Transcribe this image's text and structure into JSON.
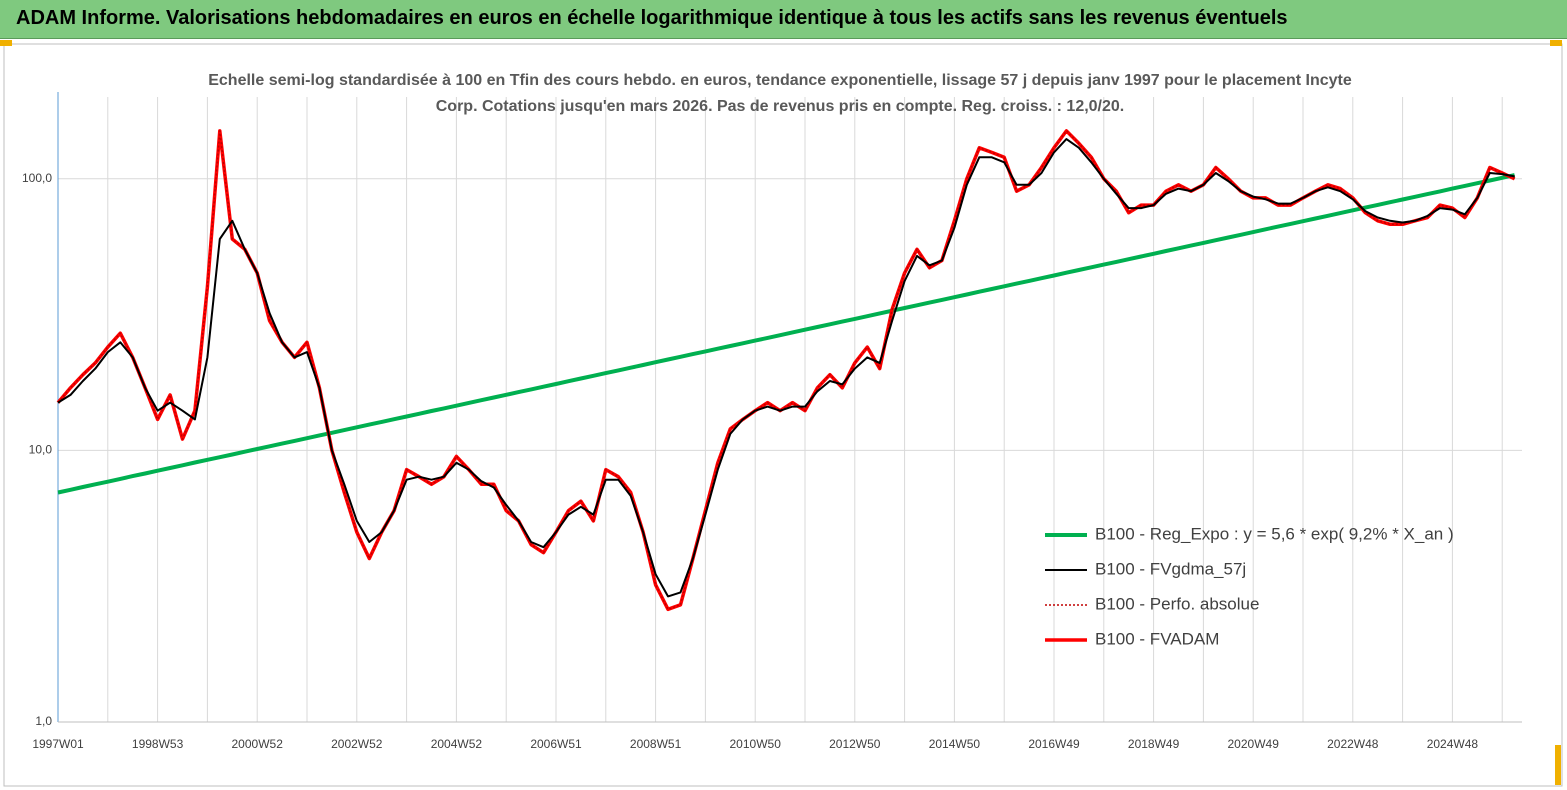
{
  "chart_data": {
    "type": "line",
    "title": "ADAM Informe. Valorisations hebdomadaires en euros en échelle logarithmique identique à tous les actifs sans les revenus éventuels",
    "subtitle": "Echelle semi-log standardisée à 100 en Tfin des cours hebdo. en euros, tendance exponentielle, lissage 57 j depuis janv 1997 pour le placement Incyte Corp. Cotations jusqu'en mars 2026. Pas de revenus pris en compte. Reg. croiss. : 12,0/20.",
    "log_scale": true,
    "grid": true,
    "legend": "lower right",
    "ylim": [
      1,
      200
    ],
    "yticks": [
      {
        "value": 1,
        "label": "1,0"
      },
      {
        "value": 10,
        "label": "10,0"
      },
      {
        "value": 100,
        "label": "100,0"
      }
    ],
    "categories": [
      "1997W01",
      null,
      null,
      null,
      null,
      null,
      null,
      null,
      "1998W53",
      null,
      null,
      null,
      null,
      null,
      null,
      null,
      "2000W52",
      null,
      null,
      null,
      null,
      null,
      null,
      null,
      "2002W52",
      null,
      null,
      null,
      null,
      null,
      null,
      null,
      "2004W52",
      null,
      null,
      null,
      null,
      null,
      null,
      null,
      "2006W51",
      null,
      null,
      null,
      null,
      null,
      null,
      null,
      "2008W51",
      null,
      null,
      null,
      null,
      null,
      null,
      null,
      "2010W50",
      null,
      null,
      null,
      null,
      null,
      null,
      null,
      "2012W50",
      null,
      null,
      null,
      null,
      null,
      null,
      null,
      "2014W50",
      null,
      null,
      null,
      null,
      null,
      null,
      null,
      "2016W49",
      null,
      null,
      null,
      null,
      null,
      null,
      null,
      "2018W49",
      null,
      null,
      null,
      null,
      null,
      null,
      null,
      "2020W49",
      null,
      null,
      null,
      null,
      null,
      null,
      null,
      "2022W48",
      null,
      null,
      null,
      null,
      null,
      null,
      null,
      "2024W48",
      null,
      null,
      null,
      null,
      null
    ],
    "series": [
      {
        "name": "B100 - Reg_Expo : y = 5,6 *  exp( 9,2% *  X_an )",
        "color": "#00b050",
        "width": 4,
        "dash": false,
        "values": [
          7.0,
          7.16,
          7.33,
          7.5,
          7.67,
          7.85,
          8.04,
          8.22,
          8.42,
          8.61,
          8.81,
          9.02,
          9.23,
          9.44,
          9.66,
          9.89,
          10.12,
          10.35,
          10.59,
          10.84,
          11.09,
          11.35,
          11.61,
          11.88,
          12.16,
          12.44,
          12.73,
          13.03,
          13.33,
          13.64,
          13.96,
          14.28,
          14.61,
          14.95,
          15.3,
          15.66,
          16.02,
          16.39,
          16.77,
          17.16,
          17.56,
          17.97,
          18.39,
          18.82,
          19.25,
          19.7,
          20.16,
          20.63,
          21.11,
          21.6,
          22.1,
          22.61,
          23.14,
          23.68,
          24.23,
          24.79,
          25.37,
          25.96,
          26.56,
          27.18,
          27.81,
          28.46,
          29.12,
          29.8,
          30.49,
          31.2,
          31.93,
          32.67,
          33.43,
          34.21,
          35.0,
          35.82,
          36.65,
          37.5,
          38.38,
          39.27,
          40.18,
          41.12,
          42.07,
          43.05,
          44.05,
          45.08,
          46.13,
          47.2,
          48.3,
          49.42,
          50.57,
          51.75,
          52.95,
          54.19,
          55.45,
          56.74,
          58.06,
          59.41,
          60.79,
          62.21,
          63.65,
          65.14,
          66.65,
          68.2,
          69.79,
          71.41,
          73.07,
          74.77,
          76.51,
          78.29,
          80.11,
          81.98,
          83.88,
          85.84,
          87.83,
          89.88,
          91.97,
          94.11,
          96.3,
          98.54,
          100.83,
          103.17
        ]
      },
      {
        "name": "B100 - FVgdma_57j",
        "color": "#000000",
        "width": 2,
        "dash": false,
        "values": [
          15,
          16,
          18,
          20,
          23,
          25,
          22,
          17,
          14,
          15,
          14,
          13,
          22,
          60,
          70,
          55,
          45,
          32,
          25,
          22,
          23,
          17,
          10,
          7.5,
          5.5,
          4.6,
          5.0,
          6.0,
          7.8,
          8.0,
          7.8,
          8.0,
          9.0,
          8.5,
          7.7,
          7.3,
          6.3,
          5.5,
          4.6,
          4.4,
          5.0,
          5.8,
          6.2,
          5.8,
          7.8,
          7.8,
          6.8,
          5.0,
          3.5,
          2.9,
          3.0,
          4.0,
          5.8,
          8.5,
          11.5,
          13,
          14,
          14.5,
          14,
          14.5,
          14.5,
          16.5,
          18,
          17.5,
          20,
          22,
          21,
          30,
          42,
          52,
          48,
          50,
          66,
          95,
          120,
          120,
          115,
          95,
          95,
          105,
          125,
          140,
          130,
          115,
          100,
          88,
          78,
          78,
          80,
          88,
          92,
          90,
          95,
          105,
          98,
          90,
          86,
          84,
          81,
          81,
          85,
          90,
          93,
          90,
          84,
          76,
          72,
          70,
          69,
          70,
          73,
          78,
          77,
          74,
          85,
          105,
          104,
          102
        ]
      },
      {
        "name": "B100 - Perfo. absolue",
        "color": "#c00000",
        "width": 1.5,
        "dash": true,
        "values": [
          15,
          17,
          19,
          21,
          24,
          27,
          22,
          17,
          13,
          16,
          11,
          14,
          40,
          150,
          60,
          55,
          45,
          30,
          25,
          22,
          25,
          17,
          10,
          7,
          5.0,
          4.0,
          5.0,
          6.0,
          8.5,
          8.0,
          7.5,
          8.0,
          9.5,
          8.5,
          7.5,
          7.5,
          6.0,
          5.5,
          4.5,
          4.2,
          5.0,
          6.0,
          6.5,
          5.5,
          8.5,
          8.0,
          7.0,
          5.0,
          3.2,
          2.6,
          2.7,
          4.0,
          6.0,
          9.0,
          12,
          13,
          14,
          15,
          14,
          15,
          14,
          17,
          19,
          17,
          21,
          24,
          20,
          33,
          45,
          55,
          47,
          50,
          70,
          100,
          130,
          125,
          120,
          90,
          95,
          110,
          130,
          150,
          135,
          120,
          100,
          90,
          75,
          80,
          80,
          90,
          95,
          90,
          95,
          110,
          100,
          90,
          85,
          85,
          80,
          80,
          85,
          90,
          95,
          92,
          85,
          75,
          70,
          68,
          68,
          70,
          72,
          80,
          78,
          72,
          85,
          110,
          105,
          100
        ]
      },
      {
        "name": "B100 - FVADAM",
        "color": "#ff0000",
        "width": 3.5,
        "dash": false,
        "values": [
          15,
          17,
          19,
          21,
          24,
          27,
          22,
          17,
          13,
          16,
          11,
          14,
          40,
          150,
          60,
          55,
          45,
          30,
          25,
          22,
          25,
          17,
          10,
          7,
          5.0,
          4.0,
          5.0,
          6.0,
          8.5,
          8.0,
          7.5,
          8.0,
          9.5,
          8.5,
          7.5,
          7.5,
          6.0,
          5.5,
          4.5,
          4.2,
          5.0,
          6.0,
          6.5,
          5.5,
          8.5,
          8.0,
          7.0,
          5.0,
          3.2,
          2.6,
          2.7,
          4.0,
          6.0,
          9.0,
          12,
          13,
          14,
          15,
          14,
          15,
          14,
          17,
          19,
          17,
          21,
          24,
          20,
          33,
          45,
          55,
          47,
          50,
          70,
          100,
          130,
          125,
          120,
          90,
          95,
          110,
          130,
          150,
          135,
          120,
          100,
          90,
          75,
          80,
          80,
          90,
          95,
          90,
          95,
          110,
          100,
          90,
          85,
          85,
          80,
          80,
          85,
          90,
          95,
          92,
          85,
          75,
          70,
          68,
          68,
          70,
          72,
          80,
          78,
          72,
          85,
          110,
          105,
          100
        ]
      }
    ]
  }
}
